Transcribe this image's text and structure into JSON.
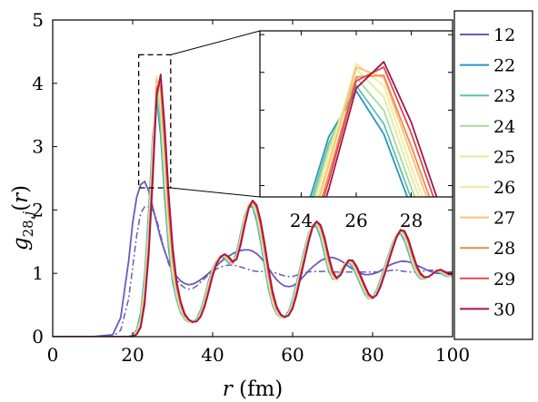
{
  "chart_data": {
    "type": "line",
    "xlabel": "r (fm)",
    "ylabel": "g28,j(r)",
    "xlim": [
      0,
      100
    ],
    "ylim": [
      0,
      5
    ],
    "x_ticks": [
      "0",
      "20",
      "40",
      "60",
      "80",
      "100"
    ],
    "y_ticks": [
      "0",
      "1",
      "2",
      "3",
      "4",
      "5"
    ],
    "grid": false,
    "legend_placement": "right, outside axes",
    "legend_entries": [
      "12",
      "22",
      "23",
      "24",
      "25",
      "26",
      "27",
      "28",
      "29",
      "30"
    ],
    "main_x": [
      0,
      10,
      15,
      17,
      19,
      20,
      21,
      22,
      23,
      24,
      25,
      26,
      27,
      28,
      29,
      30,
      31,
      32,
      33,
      34,
      35,
      36,
      37,
      38,
      39,
      40,
      41,
      42,
      43,
      44,
      45,
      46,
      47,
      48,
      49,
      50,
      51,
      52,
      53,
      54,
      55,
      56,
      57,
      58,
      59,
      60,
      61,
      62,
      63,
      64,
      65,
      66,
      67,
      68,
      69,
      70,
      71,
      72,
      73,
      74,
      75,
      76,
      77,
      78,
      79,
      80,
      81,
      82,
      83,
      84,
      85,
      86,
      87,
      88,
      89,
      90,
      91,
      92,
      93,
      94,
      95,
      96,
      97,
      98,
      99,
      100
    ],
    "series": [
      {
        "name": "12",
        "color": "#6a5cb8",
        "style": "solid",
        "values": [
          0,
          0,
          0.03,
          0.3,
          1.2,
          1.8,
          2.2,
          2.4,
          2.45,
          2.3,
          2.05,
          1.8,
          1.55,
          1.35,
          1.18,
          1.05,
          0.95,
          0.88,
          0.84,
          0.82,
          0.83,
          0.86,
          0.9,
          0.95,
          1.0,
          1.06,
          1.12,
          1.18,
          1.23,
          1.27,
          1.31,
          1.34,
          1.36,
          1.37,
          1.37,
          1.35,
          1.31,
          1.25,
          1.17,
          1.08,
          0.98,
          0.9,
          0.84,
          0.8,
          0.79,
          0.8,
          0.84,
          0.9,
          0.97,
          1.04,
          1.1,
          1.15,
          1.2,
          1.23,
          1.25,
          1.25,
          1.23,
          1.2,
          1.16,
          1.11,
          1.07,
          1.03,
          1.0,
          0.98,
          0.98,
          0.99,
          1.01,
          1.04,
          1.08,
          1.12,
          1.15,
          1.17,
          1.19,
          1.19,
          1.18,
          1.16,
          1.13,
          1.1,
          1.07,
          1.04,
          1.02,
          1.0,
          1.0,
          1.01,
          1.02,
          1.02
        ]
      },
      {
        "name": "22",
        "color": "#2b93c4",
        "style": "solid",
        "shift": -0.4,
        "amp": 0.92
      },
      {
        "name": "23",
        "color": "#5fc2b0",
        "style": "solid",
        "shift": -0.3,
        "amp": 0.93
      },
      {
        "name": "24",
        "color": "#a9d99b",
        "style": "solid",
        "shift": -0.2,
        "amp": 0.95
      },
      {
        "name": "25",
        "color": "#dcef9a",
        "style": "solid",
        "shift": -0.1,
        "amp": 0.97
      },
      {
        "name": "26",
        "color": "#f6e8a0",
        "style": "solid",
        "shift": 0.0,
        "amp": 0.98
      },
      {
        "name": "27",
        "color": "#f9c273",
        "style": "solid",
        "shift": 0.1,
        "amp": 1.0
      },
      {
        "name": "28",
        "color": "#f28a4a",
        "style": "solid",
        "shift": 0.2,
        "amp": 1.0
      },
      {
        "name": "29",
        "color": "#dd4a4c",
        "style": "solid",
        "shift": 0.3,
        "amp": 1.02
      },
      {
        "name": "30",
        "color": "#a3154f",
        "style": "solid",
        "shift": 0.4,
        "amp": 1.03
      }
    ],
    "base_profile": [
      0,
      0,
      0,
      0,
      0,
      0.01,
      0.05,
      0.2,
      0.7,
      1.6,
      2.9,
      4.2,
      3.9,
      2.8,
      1.8,
      1.1,
      0.7,
      0.45,
      0.3,
      0.25,
      0.22,
      0.25,
      0.35,
      0.55,
      0.8,
      1.05,
      1.2,
      1.28,
      1.3,
      1.22,
      1.15,
      1.25,
      1.55,
      1.85,
      2.1,
      2.15,
      2.0,
      1.7,
      1.3,
      0.9,
      0.58,
      0.4,
      0.32,
      0.3,
      0.35,
      0.5,
      0.75,
      1.05,
      1.3,
      1.6,
      1.78,
      1.82,
      1.7,
      1.45,
      1.15,
      0.95,
      0.9,
      1.0,
      1.15,
      1.22,
      1.18,
      1.05,
      0.9,
      0.75,
      0.62,
      0.6,
      0.68,
      0.85,
      1.05,
      1.25,
      1.45,
      1.62,
      1.7,
      1.62,
      1.45,
      1.22,
      1.05,
      0.95,
      0.92,
      0.95,
      1.0,
      1.05,
      1.05,
      1.0,
      0.97,
      0.98
    ],
    "dashdot_series": {
      "color": "#6a5cb8",
      "values": [
        0,
        0,
        0,
        0.1,
        0.6,
        1.1,
        1.6,
        1.95,
        2.05,
        2.05,
        2.0,
        1.85,
        1.6,
        1.35,
        1.15,
        1.0,
        0.9,
        0.82,
        0.77,
        0.75,
        0.76,
        0.8,
        0.86,
        0.92,
        0.98,
        1.03,
        1.07,
        1.1,
        1.12,
        1.13,
        1.13,
        1.12,
        1.1,
        1.08,
        1.06,
        1.04,
        1.03,
        1.03,
        1.03,
        1.03,
        1.02,
        1.0,
        0.98,
        0.96,
        0.95,
        0.95,
        0.97,
        0.99,
        1.01,
        1.02,
        1.03,
        1.03,
        1.03,
        1.03,
        1.02,
        1.02,
        1.02,
        1.02,
        1.02,
        1.02,
        1.02,
        1.02,
        1.02,
        1.02,
        1.02,
        1.02,
        1.02,
        1.02,
        1.03,
        1.04,
        1.05,
        1.05,
        1.04,
        1.03,
        1.02,
        1.02,
        1.02,
        1.03,
        1.04,
        1.05,
        1.05,
        1.04,
        1.02,
        1.0,
        0.99,
        1.0
      ]
    },
    "zoom_box": {
      "x": [
        21.5,
        29.5
      ],
      "y": [
        2.35,
        4.45
      ]
    },
    "inset": {
      "xlim": [
        22.5,
        29.5
      ],
      "ylim": [
        2.35,
        4.55
      ],
      "x_ticks": [
        "24",
        "26",
        "28"
      ],
      "x_tick_values": [
        24,
        26,
        28
      ]
    }
  }
}
